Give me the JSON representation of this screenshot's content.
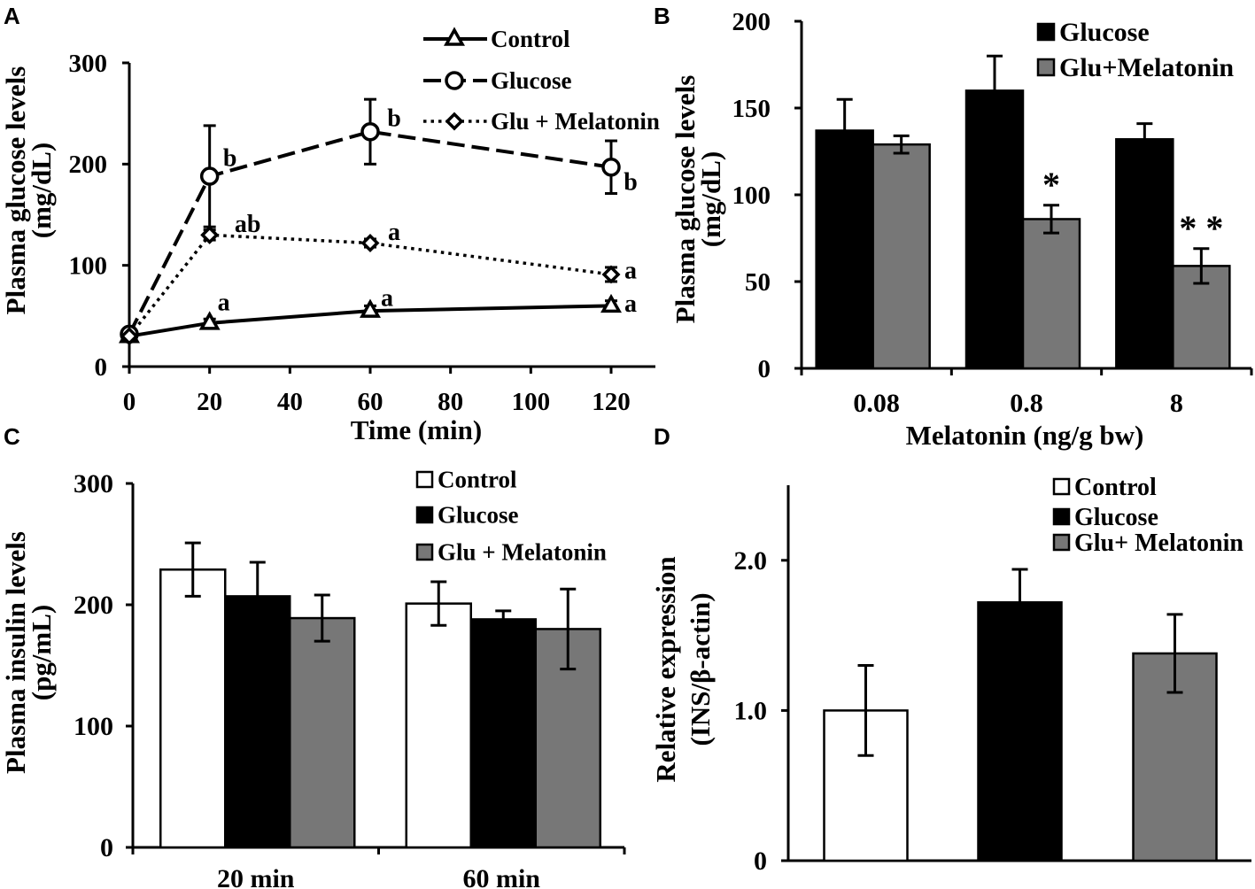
{
  "chart_data": [
    {
      "panel": "A",
      "type": "line",
      "xlabel": "Time (min)",
      "ylabel": [
        "Plasma glucose levels",
        "(mg/dL)"
      ],
      "xlim": [
        0,
        120
      ],
      "ylim": [
        0,
        300
      ],
      "xticks": [
        0,
        20,
        40,
        60,
        80,
        100,
        120
      ],
      "yticks": [
        0,
        100,
        200,
        300
      ],
      "legend": "top-right",
      "series": [
        {
          "name": "Control",
          "color": "#000000",
          "marker": "triangle",
          "line": "solid",
          "x": [
            0,
            20,
            60,
            120
          ],
          "values": [
            30,
            43,
            55,
            60
          ],
          "errors": [
            3,
            4,
            5,
            5
          ],
          "labels": [
            null,
            "a",
            "a",
            "a"
          ]
        },
        {
          "name": "Glucose",
          "color": "#000000",
          "marker": "circle",
          "line": "dashed",
          "x": [
            0,
            20,
            60,
            120
          ],
          "values": [
            32,
            188,
            232,
            197
          ],
          "errors": [
            3,
            50,
            32,
            26
          ],
          "labels": [
            null,
            "b",
            "b",
            "b"
          ]
        },
        {
          "name": "Glu + Melatonin",
          "color": "#000000",
          "marker": "diamond",
          "line": "dotted",
          "x": [
            0,
            20,
            60,
            120
          ],
          "values": [
            30,
            130,
            122,
            91
          ],
          "errors": [
            3,
            5,
            4,
            7
          ],
          "labels": [
            null,
            "ab",
            "a",
            "a"
          ]
        }
      ]
    },
    {
      "panel": "B",
      "type": "bar",
      "xlabel": "Melatonin (ng/g bw)",
      "ylabel": [
        "Plasma glucose levels",
        "(mg/dL)"
      ],
      "categories": [
        "0.08",
        "0.8",
        "8"
      ],
      "ylim": [
        0,
        200
      ],
      "yticks": [
        0,
        50,
        100,
        150,
        200
      ],
      "legend": "top-right",
      "series": [
        {
          "name": "Glucose",
          "color": "#000000",
          "values": [
            137,
            160,
            132
          ],
          "errors": [
            18,
            20,
            9
          ]
        },
        {
          "name": "Glu+Melatonin",
          "color": "#777777",
          "values": [
            129,
            86,
            59
          ],
          "errors": [
            5,
            8,
            10
          ],
          "annotations": [
            null,
            "*",
            "* *"
          ]
        }
      ]
    },
    {
      "panel": "C",
      "type": "bar",
      "ylabel": [
        "Plasma insulin levels",
        "(pg/mL)"
      ],
      "categories": [
        "20 min",
        "60 min"
      ],
      "ylim": [
        0,
        300
      ],
      "yticks": [
        0,
        100,
        200,
        300
      ],
      "legend": "top-right",
      "series": [
        {
          "name": "Control",
          "color": "#ffffff",
          "values": [
            229,
            201
          ],
          "errors": [
            22,
            18
          ]
        },
        {
          "name": "Glucose",
          "color": "#000000",
          "values": [
            207,
            188
          ],
          "errors": [
            28,
            7
          ]
        },
        {
          "name": "Glu + Melatonin",
          "color": "#777777",
          "values": [
            189,
            180
          ],
          "errors": [
            19,
            33
          ]
        }
      ]
    },
    {
      "panel": "D",
      "type": "bar",
      "ylabel": [
        "Relative expression",
        "(INS/β-actin)"
      ],
      "ylim": [
        0,
        2.5
      ],
      "yticks": [
        0,
        1,
        2
      ],
      "ytick_labels": [
        "0",
        "1.0",
        "2.0"
      ],
      "legend": "top-right",
      "series": [
        {
          "name": "Control",
          "color": "#ffffff",
          "values": [
            1.0
          ],
          "errors": [
            0.3
          ]
        },
        {
          "name": "Glucose",
          "color": "#000000",
          "values": [
            1.72
          ],
          "errors": [
            0.22
          ]
        },
        {
          "name": "Glu+ Melatonin",
          "color": "#777777",
          "values": [
            1.38
          ],
          "errors": [
            0.26
          ]
        }
      ]
    }
  ]
}
